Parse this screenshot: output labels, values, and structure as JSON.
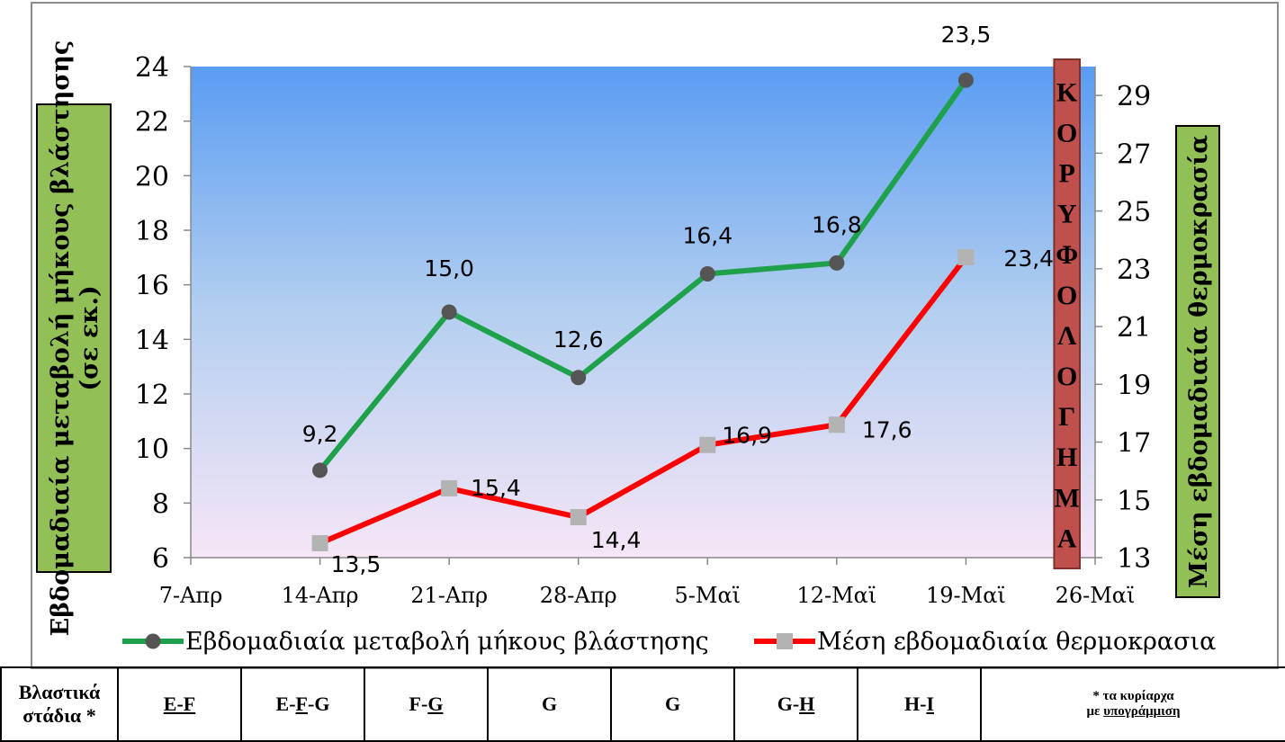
{
  "chart_data": {
    "type": "line",
    "x": [
      "7-Απρ",
      "14-Απρ",
      "21-Απρ",
      "28-Απρ",
      "5-Μαϊ",
      "12-Μαϊ",
      "19-Μαϊ",
      "26-Μαϊ"
    ],
    "left_axis": {
      "label": "Εβδομαδιαία μεταβολή μήκους βλάστησης (σε εκ.)",
      "ylim": [
        6,
        24
      ],
      "ticks": [
        "6",
        "8",
        "10",
        "12",
        "14",
        "16",
        "18",
        "20",
        "22",
        "24"
      ]
    },
    "right_axis": {
      "label": "Μέση εβδομαδιαία θερμοκρασία",
      "ylim": [
        13,
        30
      ],
      "ticks": [
        "13",
        "15",
        "17",
        "19",
        "21",
        "23",
        "25",
        "27",
        "29"
      ]
    },
    "series": [
      {
        "name": "Εβδομαδιαία μεταβολή μήκους βλάστησης",
        "axis": "left",
        "color": "#1fa04a",
        "marker": "circle",
        "x": [
          "14-Απρ",
          "21-Απρ",
          "28-Απρ",
          "5-Μαϊ",
          "12-Μαϊ",
          "19-Μαϊ"
        ],
        "values": [
          9.2,
          15.0,
          12.6,
          16.4,
          16.8,
          23.5
        ],
        "labels": [
          "9,2",
          "15,0",
          "12,6",
          "16,4",
          "16,8",
          "23,5"
        ]
      },
      {
        "name": "Μέση εβδομαδιαία θερμοκρασια",
        "axis": "right",
        "color": "#ff0000",
        "marker": "square",
        "x": [
          "14-Απρ",
          "21-Απρ",
          "28-Απρ",
          "5-Μαϊ",
          "12-Μαϊ",
          "19-Μαϊ"
        ],
        "values": [
          13.5,
          15.4,
          14.4,
          16.9,
          17.6,
          23.4
        ],
        "labels": [
          "13,5",
          "15,4",
          "14,4",
          "16,9",
          "17,6",
          "23,4"
        ]
      }
    ],
    "annotation": {
      "text": [
        "Κ",
        "Ο",
        "Ρ",
        "Υ",
        "Φ",
        "Ο",
        "Λ",
        "Ο",
        "Γ",
        "Η",
        "Μ",
        "Α"
      ],
      "x_from": "19-Μαϊ",
      "x_to": "26-Μαϊ",
      "color": "#c0504d"
    },
    "legend": "bottom",
    "plot_background": "gradient blue to pink"
  },
  "stages_table": {
    "header": [
      "Βλαστικά",
      "στάδια *"
    ],
    "cells": [
      {
        "parts": [
          {
            "t": "E-F",
            "u": true
          }
        ]
      },
      {
        "parts": [
          {
            "t": "E-",
            "u": false
          },
          {
            "t": "F",
            "u": true
          },
          {
            "t": "-G",
            "u": false
          }
        ]
      },
      {
        "parts": [
          {
            "t": "F-",
            "u": false
          },
          {
            "t": "G",
            "u": true
          }
        ]
      },
      {
        "parts": [
          {
            "t": "G",
            "u": false
          }
        ]
      },
      {
        "parts": [
          {
            "t": "G",
            "u": false
          }
        ]
      },
      {
        "parts": [
          {
            "t": "G-",
            "u": false
          },
          {
            "t": "H",
            "u": true
          }
        ]
      },
      {
        "parts": [
          {
            "t": "H-",
            "u": false
          },
          {
            "t": "I",
            "u": true
          }
        ]
      }
    ],
    "note_line1": "* τα κυρίαρχα",
    "note_prefix": "με ",
    "note_underlined": "υπογράμμιση"
  }
}
